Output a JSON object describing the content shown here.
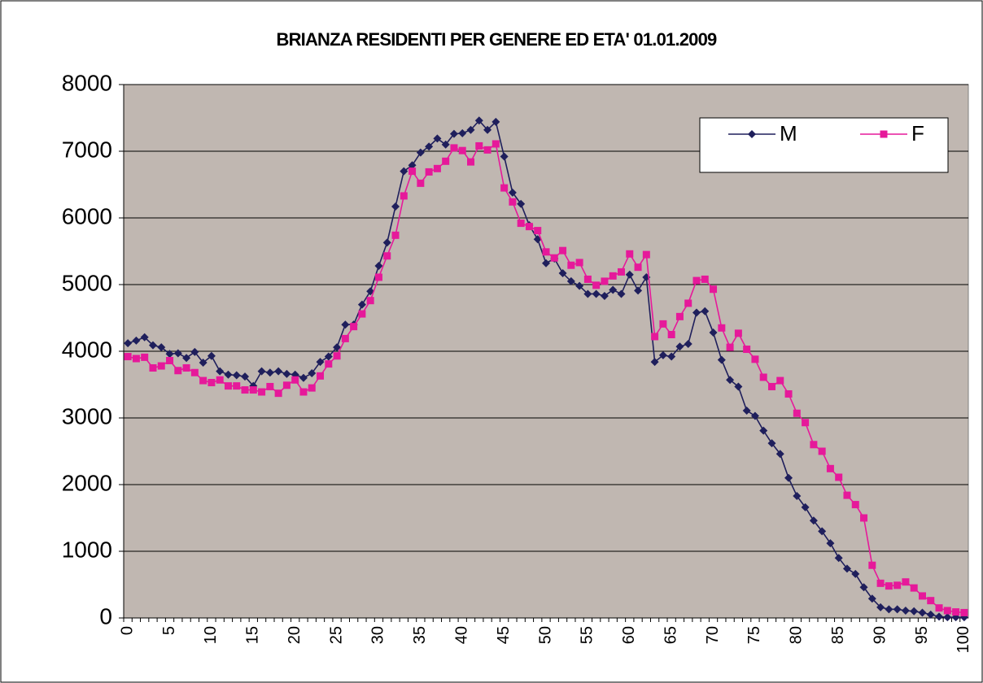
{
  "chart_data": {
    "type": "line",
    "title": "BRIANZA RESIDENTI PER GENERE ED ETA' 01.01.2009",
    "categories": [
      "0",
      null,
      null,
      null,
      null,
      "5",
      null,
      null,
      null,
      null,
      "10",
      null,
      null,
      null,
      null,
      "15",
      null,
      null,
      null,
      null,
      "20",
      null,
      null,
      null,
      null,
      "25",
      null,
      null,
      null,
      null,
      "30",
      null,
      null,
      null,
      null,
      "35",
      null,
      null,
      null,
      null,
      "40",
      null,
      null,
      null,
      null,
      "45",
      null,
      null,
      null,
      null,
      "50",
      null,
      null,
      null,
      null,
      "55",
      null,
      null,
      null,
      null,
      "60",
      null,
      null,
      null,
      null,
      "65",
      null,
      null,
      null,
      null,
      "70",
      null,
      null,
      null,
      null,
      "75",
      null,
      null,
      null,
      null,
      "80",
      null,
      null,
      null,
      null,
      "85",
      null,
      null,
      null,
      null,
      "90",
      null,
      null,
      null,
      null,
      "95",
      null,
      null,
      null,
      null,
      "100"
    ],
    "series": [
      {
        "name": "M",
        "color": "#1f1f5c",
        "marker": "diamond",
        "values": [
          4120,
          4160,
          4210,
          4090,
          4060,
          3960,
          3970,
          3900,
          3990,
          3830,
          3930,
          3700,
          3650,
          3640,
          3620,
          3480,
          3700,
          3680,
          3700,
          3660,
          3650,
          3600,
          3670,
          3840,
          3920,
          4060,
          4400,
          4400,
          4700,
          4900,
          5280,
          5630,
          6170,
          6700,
          6790,
          6980,
          7070,
          7190,
          7100,
          7260,
          7270,
          7320,
          7460,
          7320,
          7440,
          6920,
          6380,
          6210,
          5890,
          5680,
          5320,
          5390,
          5170,
          5050,
          4980,
          4860,
          4860,
          4830,
          4920,
          4860,
          5150,
          4910,
          5110,
          3840,
          3940,
          3920,
          4070,
          4110,
          4580,
          4600,
          4280,
          3870,
          3570,
          3470,
          3110,
          3030,
          2810,
          2620,
          2460,
          2100,
          1830,
          1660,
          1460,
          1300,
          1120,
          900,
          740,
          660,
          460,
          290,
          160,
          130,
          130,
          110,
          100,
          80,
          50,
          20,
          10,
          10,
          10
        ]
      },
      {
        "name": "F",
        "color": "#e6199a",
        "marker": "square",
        "values": [
          3920,
          3890,
          3910,
          3750,
          3780,
          3860,
          3710,
          3750,
          3680,
          3560,
          3530,
          3570,
          3480,
          3480,
          3420,
          3420,
          3390,
          3470,
          3370,
          3490,
          3570,
          3390,
          3450,
          3630,
          3810,
          3930,
          4190,
          4370,
          4560,
          4760,
          5110,
          5430,
          5740,
          6330,
          6700,
          6520,
          6690,
          6740,
          6850,
          7050,
          7010,
          6840,
          7080,
          7020,
          7110,
          6450,
          6240,
          5920,
          5870,
          5810,
          5490,
          5400,
          5510,
          5290,
          5330,
          5080,
          4990,
          5050,
          5130,
          5190,
          5460,
          5260,
          5450,
          4220,
          4410,
          4250,
          4520,
          4720,
          5060,
          5080,
          4930,
          4350,
          4060,
          4270,
          4030,
          3880,
          3610,
          3470,
          3560,
          3360,
          3070,
          2930,
          2600,
          2500,
          2240,
          2110,
          1840,
          1700,
          1500,
          790,
          520,
          480,
          490,
          540,
          450,
          330,
          260,
          150,
          110,
          90,
          80
        ]
      }
    ],
    "ylim": [
      0,
      8000
    ],
    "yticks": [
      0,
      1000,
      2000,
      3000,
      4000,
      5000,
      6000,
      7000,
      8000
    ],
    "grid": true,
    "legend": "top-right",
    "plot_background": "#c0b7b1"
  }
}
